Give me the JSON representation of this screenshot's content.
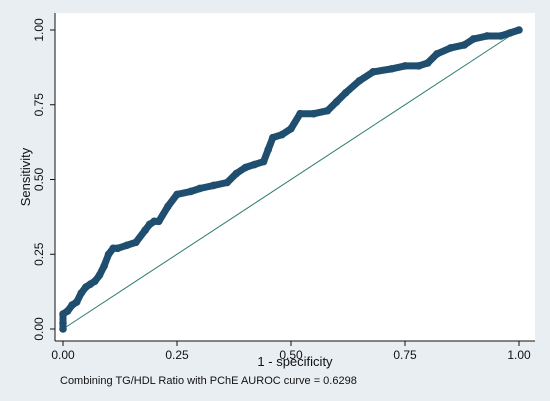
{
  "chart_data": {
    "type": "line",
    "xlabel": "1 - specificity",
    "ylabel": "Sensitivity",
    "note": "Combining TG/HDL Ratio with PChE AUROC curve = 0.6298",
    "xlim": [
      0,
      1
    ],
    "ylim": [
      0,
      1
    ],
    "xticks": [
      "0.00",
      "0.25",
      "0.50",
      "0.75",
      "1.00"
    ],
    "yticks": [
      "0.00",
      "0.25",
      "0.50",
      "0.75",
      "1.00"
    ],
    "grid": false,
    "colors": {
      "roc": "#1f4e6e",
      "reference": "#2e7d71",
      "background": "#e9eef3",
      "plot": "#ffffff"
    },
    "series": [
      {
        "x": [
          0.0,
          0.0,
          0.0,
          0.01,
          0.02,
          0.03,
          0.04,
          0.05,
          0.06,
          0.07,
          0.08,
          0.09,
          0.1,
          0.11,
          0.12,
          0.14,
          0.16,
          0.18,
          0.19,
          0.2,
          0.21,
          0.23,
          0.25,
          0.28,
          0.3,
          0.33,
          0.36,
          0.38,
          0.4,
          0.42,
          0.44,
          0.45,
          0.46,
          0.48,
          0.5,
          0.52,
          0.55,
          0.58,
          0.6,
          0.62,
          0.65,
          0.68,
          0.72,
          0.75,
          0.78,
          0.8,
          0.82,
          0.85,
          0.88,
          0.9,
          0.93,
          0.96,
          0.98,
          1.0
        ],
        "y": [
          0.0,
          0.02,
          0.05,
          0.06,
          0.08,
          0.09,
          0.12,
          0.14,
          0.15,
          0.16,
          0.18,
          0.21,
          0.25,
          0.27,
          0.27,
          0.28,
          0.29,
          0.33,
          0.35,
          0.36,
          0.36,
          0.41,
          0.45,
          0.46,
          0.47,
          0.48,
          0.49,
          0.52,
          0.54,
          0.55,
          0.56,
          0.6,
          0.64,
          0.65,
          0.67,
          0.72,
          0.72,
          0.73,
          0.76,
          0.79,
          0.83,
          0.86,
          0.87,
          0.88,
          0.88,
          0.89,
          0.92,
          0.94,
          0.95,
          0.97,
          0.98,
          0.98,
          0.99,
          1.0
        ]
      },
      {
        "x": [
          0,
          1
        ],
        "y": [
          0,
          1
        ]
      }
    ]
  }
}
